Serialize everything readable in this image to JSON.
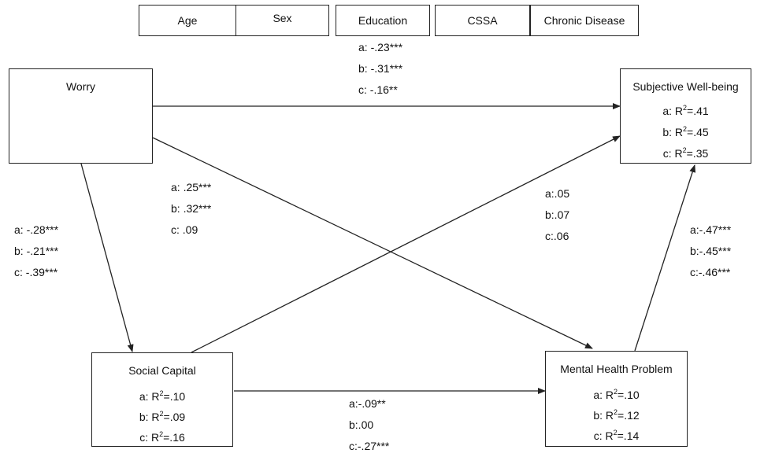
{
  "controls": [
    "Age",
    "Sex",
    "Education",
    "CSSA",
    "Chronic Disease"
  ],
  "nodes": {
    "worry": {
      "title": "Worry"
    },
    "swb": {
      "title": "Subjective Well-being",
      "r2": [
        "a: R",
        "b: R",
        "c: R"
      ],
      "r2_sup": "2",
      "r2_val": [
        "=.41",
        "=.45",
        "=.35"
      ]
    },
    "social": {
      "title": "Social Capital",
      "r2": [
        "a: R",
        "b: R",
        "c: R"
      ],
      "r2_sup": "2",
      "r2_val": [
        "=.10",
        "=.09",
        "=.16"
      ]
    },
    "mental": {
      "title": "Mental Health Problem",
      "r2": [
        "a: R",
        "b: R",
        "c: R"
      ],
      "r2_sup": "2",
      "r2_val": [
        "=.10",
        "=.12",
        "=.14"
      ]
    }
  },
  "paths": {
    "worry_to_swb": [
      "a: -.23***",
      "b: -.31***",
      "c: -.16**"
    ],
    "worry_to_mental": [
      "a: .25***",
      "b: .32***",
      "c: .09"
    ],
    "worry_to_social": [
      "a: -.28***",
      "b: -.21***",
      "c: -.39***"
    ],
    "social_to_swb": [
      "a:.05",
      "b:.07",
      "c:.06"
    ],
    "mental_to_swb": [
      "a:-.47***",
      "b:-.45***",
      "c:-.46***"
    ],
    "social_to_mental": [
      "a:-.09**",
      "b:.00",
      "c:-.27***"
    ]
  },
  "colors": {
    "line": "#222222",
    "text": "#111111",
    "background": "#ffffff"
  }
}
